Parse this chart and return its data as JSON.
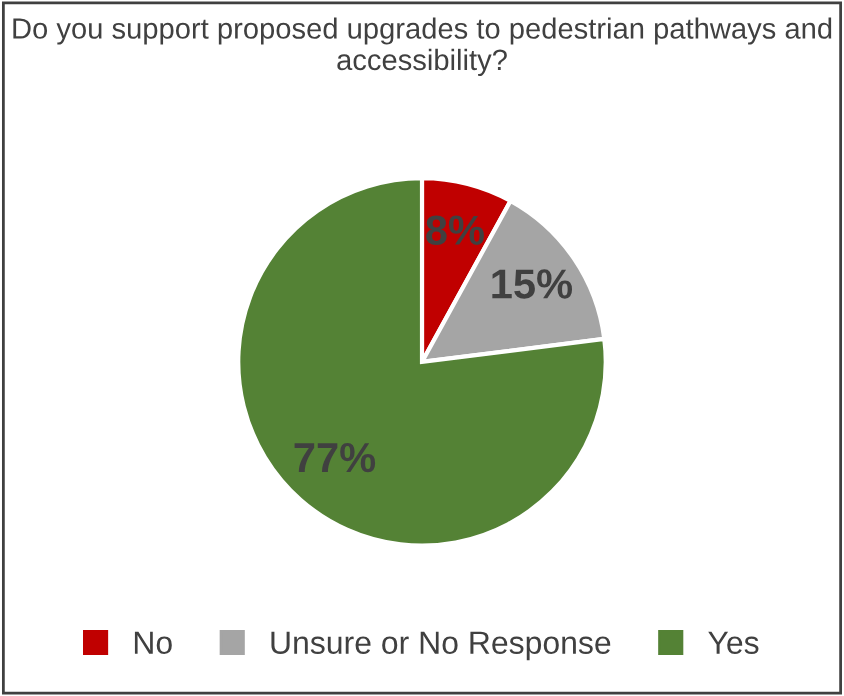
{
  "chart_data": {
    "type": "pie",
    "title": "Do you support proposed upgrades to pedestrian pathways and accessibility?",
    "categories": [
      "No",
      "Unsure or No Response",
      "Yes"
    ],
    "values": [
      8,
      15,
      77
    ],
    "colors": [
      "#c00000",
      "#a5a5a5",
      "#548235"
    ],
    "value_labels": [
      "8%",
      "15%",
      "77%"
    ],
    "legend": "bottom"
  }
}
